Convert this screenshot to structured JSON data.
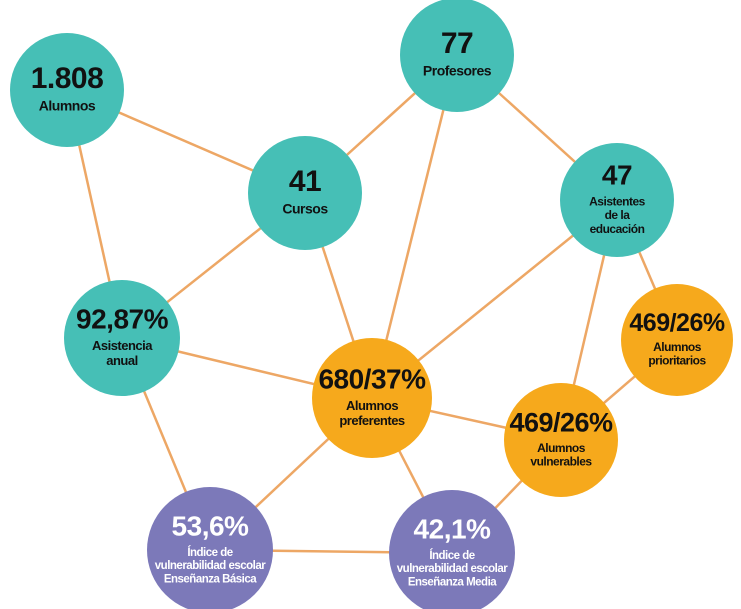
{
  "nodes": [
    {
      "value": "1.808",
      "label": [
        "Alumnos"
      ]
    },
    {
      "value": "77",
      "label": [
        "Profesores"
      ]
    },
    {
      "value": "41",
      "label": [
        "Cursos"
      ]
    },
    {
      "value": "47",
      "label": [
        "Asistentes",
        "de la",
        "educación"
      ]
    },
    {
      "value": "92,87%",
      "label": [
        "Asistencia",
        "anual"
      ]
    },
    {
      "value": "680/37%",
      "label": [
        "Alumnos",
        "preferentes"
      ]
    },
    {
      "value": "469/26%",
      "label": [
        "Alumnos",
        "prioritarios"
      ]
    },
    {
      "value": "469/26%",
      "label": [
        "Alumnos",
        "vulnerables"
      ]
    },
    {
      "value": "53,6%",
      "label": [
        "Índice de",
        "vulnerabilidad escolar",
        "Enseñanza Básica"
      ]
    },
    {
      "value": "42,1%",
      "label": [
        "Índice de",
        "vulnerabilidad escolar",
        "Enseñanza Media"
      ]
    }
  ]
}
